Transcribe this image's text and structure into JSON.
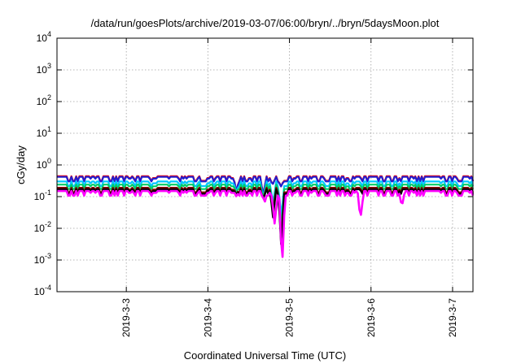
{
  "chart_data": {
    "type": "line",
    "title": "/data/run/goesPlots/archive/2019-03-07/06:00/bryn/../bryn/5daysMoon.plot",
    "xlabel": "Coordinated Universal Time (UTC)",
    "ylabel": "cGy/day",
    "yscale": "log",
    "ylim": [
      0.0001,
      10000
    ],
    "xlim": [
      2.15,
      7.25
    ],
    "y_ticks": [
      {
        "value": 0.0001,
        "base": "10",
        "exp": "-4"
      },
      {
        "value": 0.001,
        "base": "10",
        "exp": "-3"
      },
      {
        "value": 0.01,
        "base": "10",
        "exp": "-2"
      },
      {
        "value": 0.1,
        "base": "10",
        "exp": "-1"
      },
      {
        "value": 1,
        "base": "10",
        "exp": "0"
      },
      {
        "value": 10,
        "base": "10",
        "exp": "1"
      },
      {
        "value": 100,
        "base": "10",
        "exp": "2"
      },
      {
        "value": 1000,
        "base": "10",
        "exp": "3"
      },
      {
        "value": 10000,
        "base": "10",
        "exp": "4"
      }
    ],
    "x_ticks": [
      {
        "value": 3,
        "label": "2019-3-3"
      },
      {
        "value": 4,
        "label": "2019-3-4"
      },
      {
        "value": 5,
        "label": "2019-3-5"
      },
      {
        "value": 6,
        "label": "2019-3-6"
      },
      {
        "value": 7,
        "label": "2019-3-7"
      }
    ],
    "grid": true,
    "legend": "none",
    "series": [
      {
        "color": "#ff0000",
        "base": 0.44,
        "dips": [
          {
            "x": 4.35,
            "v": 0.13
          },
          {
            "x": 4.68,
            "v": 0.12
          },
          {
            "x": 4.8,
            "v": 0.25
          },
          {
            "x": 4.9,
            "v": 0.2
          }
        ]
      },
      {
        "color": "#2020d0",
        "base": 0.42,
        "dips": [
          {
            "x": 4.35,
            "v": 0.13
          },
          {
            "x": 4.68,
            "v": 0.12
          },
          {
            "x": 4.8,
            "v": 0.25
          },
          {
            "x": 4.9,
            "v": 0.2
          }
        ]
      },
      {
        "color": "#00c8ff",
        "base": 0.3,
        "dips": [
          {
            "x": 4.35,
            "v": 0.12
          },
          {
            "x": 4.68,
            "v": 0.1
          },
          {
            "x": 4.8,
            "v": 0.06
          },
          {
            "x": 4.9,
            "v": 0.02
          }
        ]
      },
      {
        "color": "#00cc66",
        "base": 0.24,
        "dips": [
          {
            "x": 4.35,
            "v": 0.12
          },
          {
            "x": 4.68,
            "v": 0.1
          },
          {
            "x": 4.8,
            "v": 0.04
          },
          {
            "x": 4.9,
            "v": 0.008
          }
        ]
      },
      {
        "color": "#800000",
        "base": 0.19,
        "dips": [
          {
            "x": 4.35,
            "v": 0.11
          },
          {
            "x": 4.68,
            "v": 0.09
          },
          {
            "x": 4.8,
            "v": 0.03
          },
          {
            "x": 4.9,
            "v": 0.003
          }
        ]
      },
      {
        "color": "#000000",
        "base": 0.17,
        "dips": [
          {
            "x": 4.35,
            "v": 0.11
          },
          {
            "x": 4.68,
            "v": 0.09
          },
          {
            "x": 4.8,
            "v": 0.02
          },
          {
            "x": 4.9,
            "v": 0.002
          }
        ]
      },
      {
        "color": "#ff00ff",
        "base": 0.15,
        "dips": [
          {
            "x": 4.35,
            "v": 0.1
          },
          {
            "x": 4.7,
            "v": 0.07
          },
          {
            "x": 4.82,
            "v": 0.012
          },
          {
            "x": 4.91,
            "v": 0.0005
          },
          {
            "x": 5.87,
            "v": 0.018
          },
          {
            "x": 6.38,
            "v": 0.05
          }
        ]
      }
    ]
  }
}
